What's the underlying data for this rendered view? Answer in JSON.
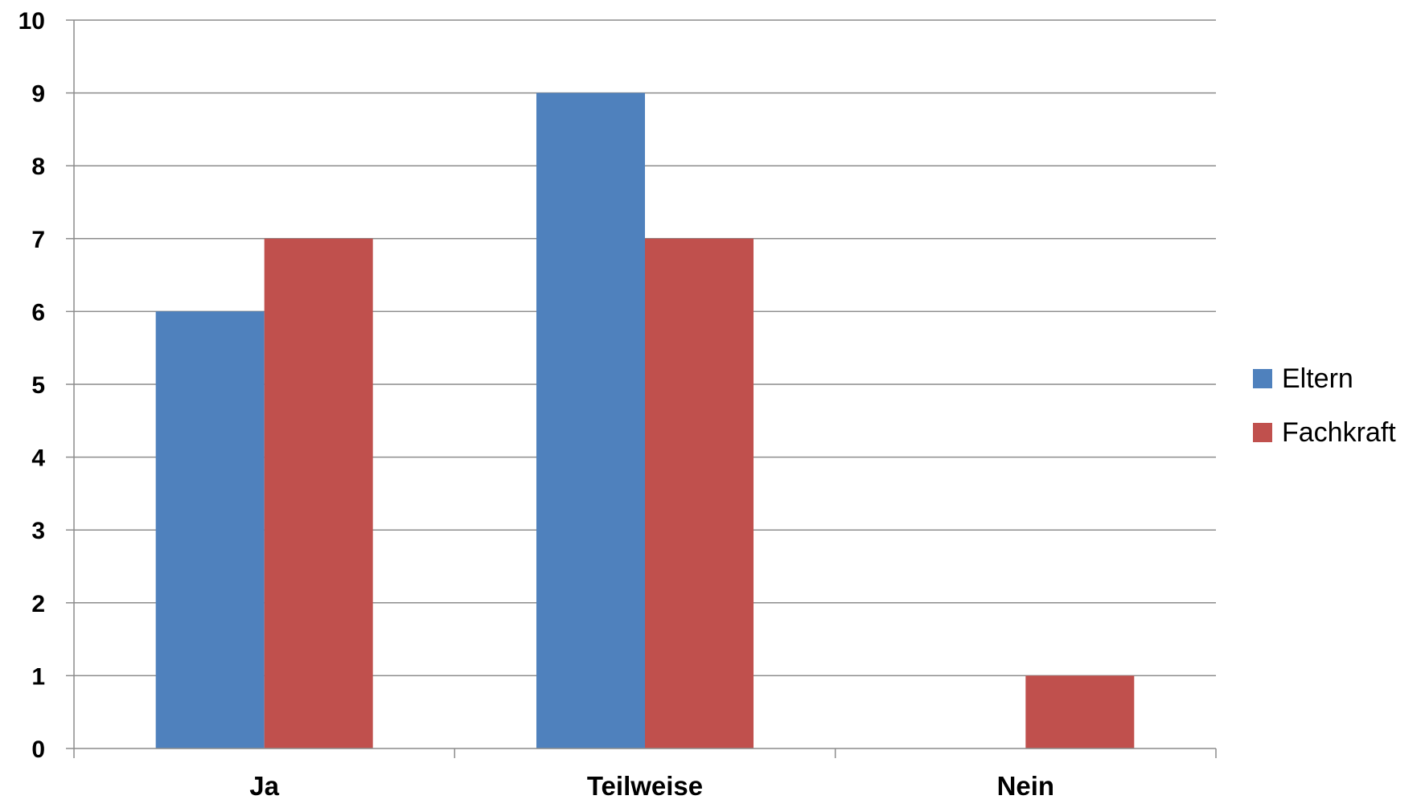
{
  "chart_data": {
    "type": "bar",
    "categories": [
      "Ja",
      "Teilweise",
      "Nein"
    ],
    "series": [
      {
        "name": "Eltern",
        "values": [
          6,
          9,
          0
        ],
        "color": "#4F81BD"
      },
      {
        "name": "Fachkraft",
        "values": [
          7,
          7,
          1
        ],
        "color": "#C0504D"
      }
    ],
    "title": "",
    "xlabel": "",
    "ylabel": "",
    "ylim": [
      0,
      10
    ],
    "yticks": [
      0,
      1,
      2,
      3,
      4,
      5,
      6,
      7,
      8,
      9,
      10
    ],
    "grid": true,
    "legend_position": "right"
  }
}
